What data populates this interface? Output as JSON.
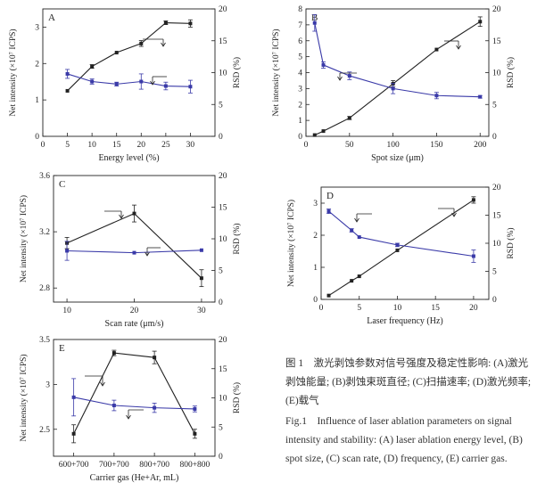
{
  "caption": {
    "zh": "图 1　激光剥蚀参数对信号强度及稳定性影响: (A)激光剥蚀能量; (B)剥蚀束斑直径; (C)扫描速率; (D)激光频率; (E)载气",
    "en": "Fig.1　Influence of laser ablation parameters on signal intensity and stability: (A) laser ablation energy level, (B) spot size, (C) scan rate, (D) frequency, (E) carrier gas."
  },
  "colors": {
    "intensity": "#222222",
    "rsd": "#3a3aa8",
    "axis": "#222222"
  },
  "chart_data": [
    {
      "id": "A",
      "type": "line",
      "panel_label": "A",
      "xlabel": "Energy level (%)",
      "ylabel": "Net intensity (×10⁷ ICPS)",
      "y2label": "RSD (%)",
      "xlim": [
        0,
        35
      ],
      "xticks": [
        0,
        5,
        10,
        15,
        20,
        25,
        30
      ],
      "ylim": [
        0,
        3.5
      ],
      "yticks": [
        0,
        1,
        2,
        3
      ],
      "y2lim": [
        0,
        20
      ],
      "y2ticks": [
        0,
        5,
        10,
        15,
        20
      ],
      "series": [
        {
          "axis": "left",
          "x": [
            5,
            10,
            15,
            20,
            25,
            30
          ],
          "y": [
            1.25,
            1.92,
            2.3,
            2.55,
            3.12,
            3.1
          ],
          "err": [
            0,
            0.05,
            0,
            0.08,
            0.05,
            0.1
          ]
        },
        {
          "axis": "right",
          "x": [
            5,
            10,
            15,
            20,
            25,
            30
          ],
          "y": [
            9.8,
            8.6,
            8.2,
            8.6,
            7.9,
            7.8
          ],
          "err": [
            0.7,
            0.4,
            0.3,
            1.2,
            0.6,
            1.0
          ]
        }
      ]
    },
    {
      "id": "B",
      "type": "line",
      "panel_label": "B",
      "xlabel": "Spot size (μm)",
      "ylabel": "Net intensity (×10⁷ ICPS)",
      "y2label": "RSD (%)",
      "xlim": [
        0,
        210
      ],
      "xticks": [
        0,
        50,
        100,
        150,
        200
      ],
      "ylim": [
        0,
        8
      ],
      "yticks": [
        0,
        1,
        2,
        3,
        4,
        5,
        6,
        7,
        8
      ],
      "y2lim": [
        0,
        20
      ],
      "y2ticks": [
        0,
        5,
        10,
        15,
        20
      ],
      "series": [
        {
          "axis": "left",
          "x": [
            10,
            20,
            50,
            100,
            150,
            200
          ],
          "y": [
            0.08,
            0.33,
            1.15,
            3.3,
            5.45,
            7.2
          ],
          "err": [
            0,
            0,
            0.1,
            0.2,
            0,
            0.3
          ]
        },
        {
          "axis": "right",
          "x": [
            10,
            20,
            50,
            100,
            150,
            200
          ],
          "y": [
            17.8,
            11.2,
            9.5,
            7.5,
            6.4,
            6.2
          ],
          "err": [
            1.3,
            0.5,
            0.6,
            0.8,
            0.5,
            0.2
          ]
        }
      ]
    },
    {
      "id": "C",
      "type": "line",
      "panel_label": "C",
      "xlabel": "Scan rate (μm/s)",
      "ylabel": "Net intensity (×10⁷ ICPS)",
      "y2label": "RSD (%)",
      "xlim": [
        8,
        32
      ],
      "xticks": [
        10,
        20,
        30
      ],
      "ylim": [
        2.7,
        3.6
      ],
      "yticks": [
        2.8,
        3.2,
        3.6
      ],
      "y2lim": [
        0,
        20
      ],
      "y2ticks": [
        0,
        5,
        10,
        15,
        20
      ],
      "series": [
        {
          "axis": "left",
          "x": [
            10,
            20,
            30
          ],
          "y": [
            3.12,
            3.33,
            2.87
          ],
          "err": [
            0.04,
            0.06,
            0.06
          ]
        },
        {
          "axis": "right",
          "x": [
            10,
            20,
            30
          ],
          "y": [
            8.1,
            7.8,
            8.2
          ],
          "err": [
            1.5,
            0,
            0
          ]
        }
      ]
    },
    {
      "id": "D",
      "type": "line",
      "panel_label": "D",
      "xlabel": "Laser frequency (Hz)",
      "ylabel": "Net intensity (×10⁷ ICPS)",
      "y2label": "RSD (%)",
      "xlim": [
        0,
        22
      ],
      "xticks": [
        0,
        5,
        10,
        15,
        20
      ],
      "ylim": [
        0,
        3.5
      ],
      "yticks": [
        0,
        1,
        2,
        3
      ],
      "y2lim": [
        0,
        20
      ],
      "y2ticks": [
        0,
        5,
        10,
        15,
        20
      ],
      "series": [
        {
          "axis": "left",
          "x": [
            1,
            4,
            5,
            10,
            20
          ],
          "y": [
            0.12,
            0.58,
            0.72,
            1.53,
            3.1
          ],
          "err": [
            0,
            0,
            0,
            0,
            0.1
          ]
        },
        {
          "axis": "right",
          "x": [
            1,
            4,
            5,
            10,
            20
          ],
          "y": [
            15.7,
            12.3,
            11.1,
            9.7,
            7.7
          ],
          "err": [
            0.4,
            0.3,
            0,
            0.3,
            1.1
          ]
        }
      ]
    },
    {
      "id": "E",
      "type": "line",
      "panel_label": "E",
      "xlabel": "Carrier gas (He+Ar, mL)",
      "ylabel": "Net intensity (×10⁷ ICPS)",
      "y2label": "RSD (%)",
      "categories": [
        "600+700",
        "700+700",
        "800+700",
        "800+800"
      ],
      "ylim": [
        2.2,
        3.5
      ],
      "yticks": [
        2.5,
        3.0,
        3.5
      ],
      "y2lim": [
        0,
        20
      ],
      "y2ticks": [
        0,
        5,
        10,
        15,
        20
      ],
      "series": [
        {
          "axis": "left",
          "y": [
            2.45,
            3.35,
            3.3,
            2.45
          ],
          "err": [
            0.1,
            0.03,
            0.07,
            0.05
          ]
        },
        {
          "axis": "right",
          "y": [
            10.1,
            8.7,
            8.3,
            8.1
          ],
          "err": [
            3.2,
            0.9,
            0.8,
            0.5
          ]
        }
      ]
    }
  ]
}
